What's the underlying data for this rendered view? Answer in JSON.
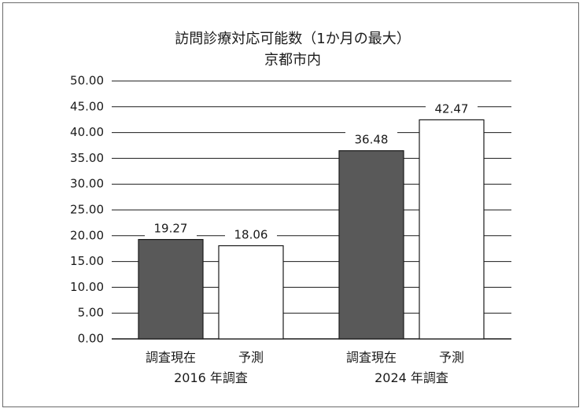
{
  "chart_data": {
    "type": "bar",
    "title": "訪問診療対応可能数（1か月の最大）",
    "subtitle": "京都市内",
    "ylim": [
      0,
      50
    ],
    "y_ticks": [
      "0.00",
      "5.00",
      "10.00",
      "15.00",
      "20.00",
      "25.00",
      "30.00",
      "35.00",
      "40.00",
      "45.00",
      "50.00"
    ],
    "grid": true,
    "groups": [
      {
        "label": "2016 年調査",
        "bars": [
          {
            "category": "調査現在",
            "value": 19.27,
            "value_label": "19.27",
            "color": "#595959"
          },
          {
            "category": "予測",
            "value": 18.06,
            "value_label": "18.06",
            "color": "#ffffff"
          }
        ]
      },
      {
        "label": "2024 年調査",
        "bars": [
          {
            "category": "調査現在",
            "value": 36.48,
            "value_label": "36.48",
            "color": "#595959"
          },
          {
            "category": "予測",
            "value": 42.47,
            "value_label": "42.47",
            "color": "#ffffff"
          }
        ]
      }
    ]
  }
}
